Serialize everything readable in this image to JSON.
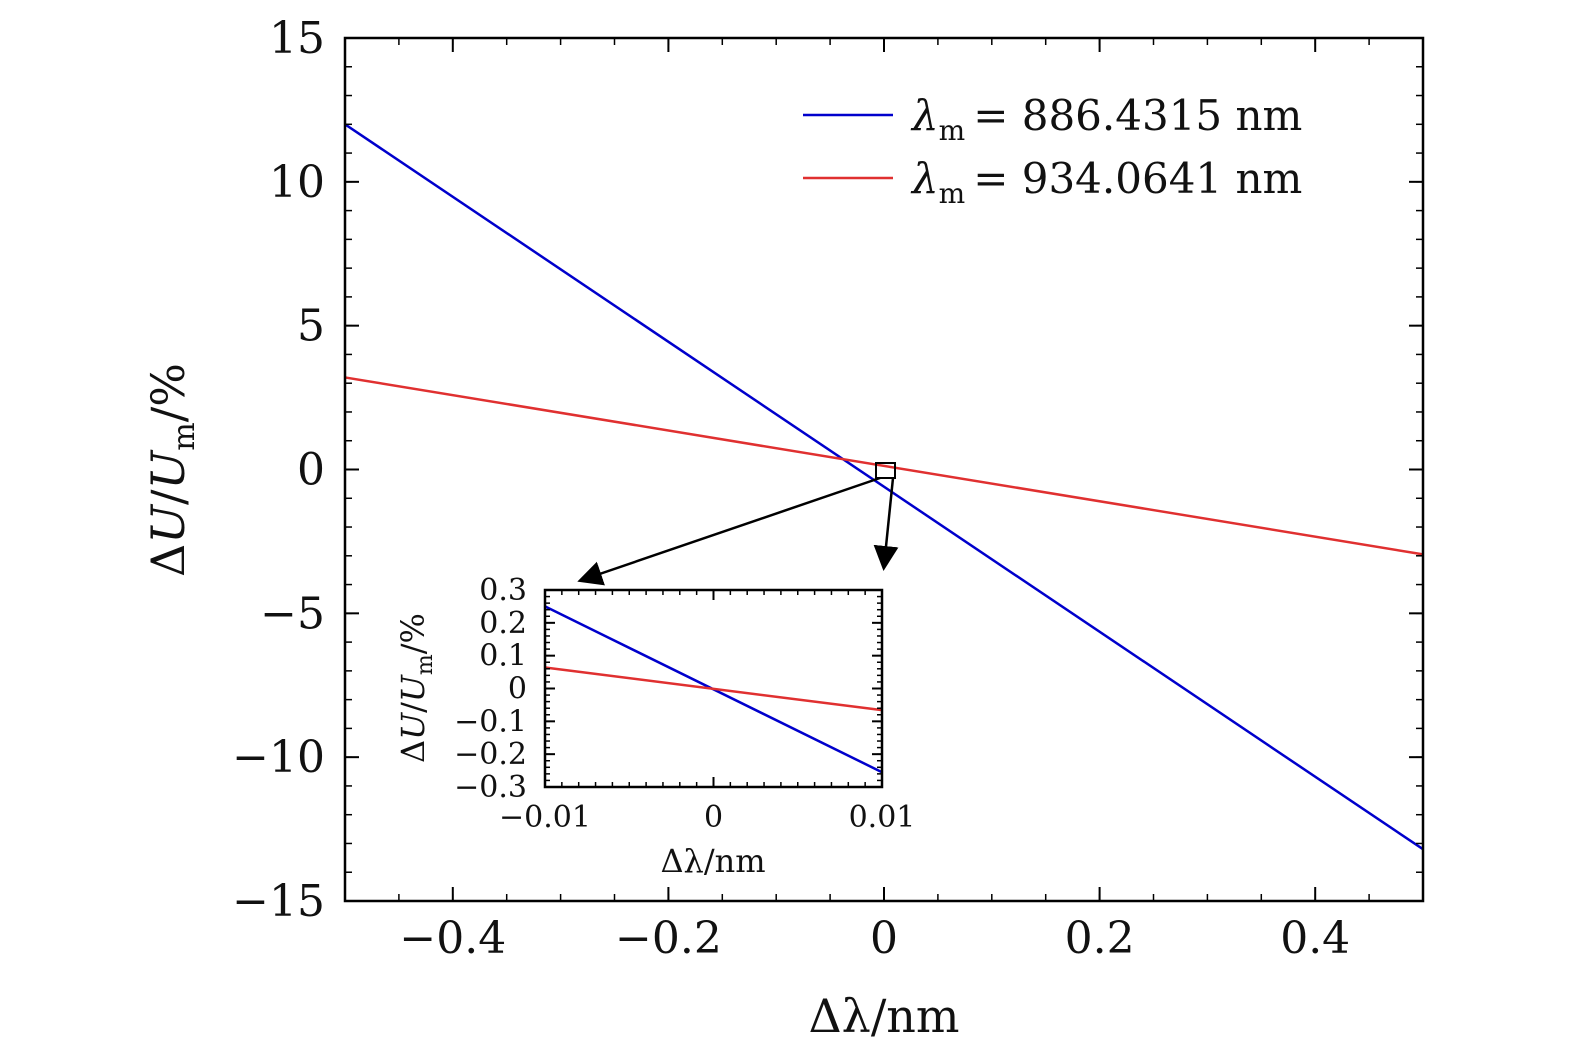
{
  "chart_data": [
    {
      "type": "line",
      "role": "main",
      "x": [
        -0.5,
        0.5
      ],
      "series": [
        {
          "name": "λm = 886.4315 nm",
          "color": "#0000cc",
          "values": [
            12.0,
            -13.2
          ]
        },
        {
          "name": "λm = 934.0641 nm",
          "color": "#e03030",
          "values": [
            3.2,
            -2.95
          ]
        }
      ],
      "xlabel": "Δλ/nm",
      "ylabel": "ΔU/Um/%",
      "xlim": [
        -0.5,
        0.5
      ],
      "ylim": [
        -15,
        15
      ],
      "xticks": [
        -0.4,
        -0.2,
        0,
        0.2,
        0.4
      ],
      "xtick_labels": [
        "−0.4",
        "−0.2",
        "0",
        "0.2",
        "0.4"
      ],
      "yticks": [
        15,
        10,
        5,
        0,
        -5,
        -10,
        -15
      ],
      "ytick_labels": [
        "15",
        "10",
        "5",
        "0",
        "−5",
        "−10",
        "−15"
      ],
      "legend": [
        {
          "symbol": "λ",
          "subscript": "m",
          "value": "= 886.4315 nm",
          "color": "#0000cc"
        },
        {
          "symbol": "λ",
          "subscript": "m",
          "value": "= 934.0641 nm",
          "color": "#e03030"
        }
      ],
      "legend_position": "top-right",
      "grid": false
    },
    {
      "type": "line",
      "role": "inset",
      "x": [
        -0.01,
        0.01
      ],
      "series": [
        {
          "name": "λm = 886.4315 nm",
          "color": "#0000cc",
          "values": [
            0.25,
            -0.255
          ]
        },
        {
          "name": "λm = 934.0641 nm",
          "color": "#e03030",
          "values": [
            0.064,
            -0.066
          ]
        }
      ],
      "xlabel": "Δλ/nm",
      "ylabel": "ΔU/Um/%",
      "xlim": [
        -0.01,
        0.01
      ],
      "ylim": [
        -0.3,
        0.3
      ],
      "xticks": [
        -0.01,
        0,
        0.01
      ],
      "xtick_labels": [
        "−0.01",
        "0",
        "0.01"
      ],
      "yticks": [
        0.3,
        0.2,
        0.1,
        0,
        -0.1,
        -0.2,
        -0.3
      ],
      "ytick_labels": [
        "0.3",
        "0.2",
        "0.1",
        "0",
        "−0.1",
        "−0.2",
        "−0.3"
      ],
      "zoom_region": {
        "x": [
          -0.01,
          0.01
        ],
        "y": [
          -0.3,
          0.3
        ]
      },
      "grid": false
    }
  ],
  "labels": {
    "main_ylabel": {
      "delta": "Δ",
      "U": "U",
      "slash": "/",
      "U2": "U",
      "sub": "m",
      "unit": "/%"
    },
    "main_xlabel": {
      "delta": "Δλ",
      "unit": "/nm"
    },
    "inset_ylabel": {
      "delta": "Δ",
      "U": "U",
      "slash": "/",
      "U2": "U",
      "sub": "m",
      "unit": "/%"
    },
    "inset_xlabel": {
      "delta": "Δλ",
      "unit": "/nm"
    }
  }
}
